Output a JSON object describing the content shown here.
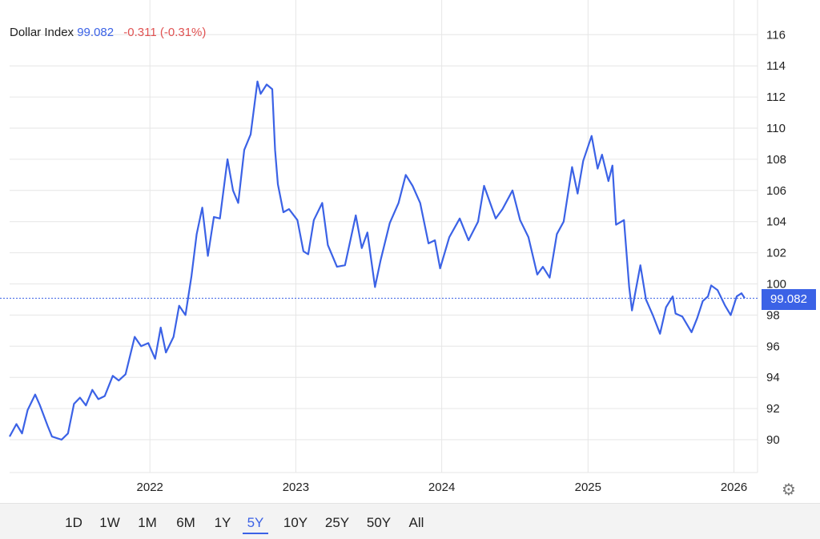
{
  "header": {
    "name": "Dollar Index",
    "value": "99.082",
    "change": "-0.311 (-0.31%)"
  },
  "price_tag": "99.082",
  "colors": {
    "line": "#3b62e6",
    "negative": "#e05252",
    "grid": "#e6e6e6"
  },
  "settings_icon": "gear-icon",
  "ranges": [
    {
      "label": "1D",
      "active": false
    },
    {
      "label": "1W",
      "active": false
    },
    {
      "label": "1M",
      "active": false
    },
    {
      "label": "6M",
      "active": false
    },
    {
      "label": "1Y",
      "active": false
    },
    {
      "label": "5Y",
      "active": true
    },
    {
      "label": "10Y",
      "active": false
    },
    {
      "label": "25Y",
      "active": false
    },
    {
      "label": "50Y",
      "active": false
    },
    {
      "label": "All",
      "active": false
    }
  ],
  "chart_data": {
    "type": "line",
    "title": "",
    "xlabel": "",
    "ylabel": "",
    "x_ticks": [
      "2022",
      "2023",
      "2024",
      "2025",
      "2026"
    ],
    "y_ticks": [
      90,
      92,
      94,
      96,
      98,
      100,
      102,
      104,
      106,
      108,
      110,
      112,
      114,
      116
    ],
    "ylim": [
      88,
      117
    ],
    "xlim": [
      "2021-01-15",
      "2026-01-28"
    ],
    "grid": true,
    "reference_line": 99.082,
    "series": [
      {
        "name": "",
        "points": [
          [
            "2021-01-15",
            90.2
          ],
          [
            "2021-02-01",
            91.0
          ],
          [
            "2021-02-15",
            90.4
          ],
          [
            "2021-03-01",
            91.9
          ],
          [
            "2021-03-20",
            92.9
          ],
          [
            "2021-04-01",
            92.2
          ],
          [
            "2021-04-20",
            90.9
          ],
          [
            "2021-05-01",
            90.2
          ],
          [
            "2021-05-25",
            90.0
          ],
          [
            "2021-06-10",
            90.4
          ],
          [
            "2021-06-25",
            92.3
          ],
          [
            "2021-07-10",
            92.7
          ],
          [
            "2021-07-25",
            92.2
          ],
          [
            "2021-08-10",
            93.2
          ],
          [
            "2021-08-25",
            92.6
          ],
          [
            "2021-09-10",
            92.8
          ],
          [
            "2021-09-30",
            94.1
          ],
          [
            "2021-10-15",
            93.8
          ],
          [
            "2021-11-01",
            94.2
          ],
          [
            "2021-11-24",
            96.6
          ],
          [
            "2021-12-10",
            96.0
          ],
          [
            "2021-12-28",
            96.2
          ],
          [
            "2022-01-14",
            95.2
          ],
          [
            "2022-01-28",
            97.2
          ],
          [
            "2022-02-10",
            95.6
          ],
          [
            "2022-03-01",
            96.6
          ],
          [
            "2022-03-15",
            98.6
          ],
          [
            "2022-03-31",
            98.0
          ],
          [
            "2022-04-15",
            100.5
          ],
          [
            "2022-04-28",
            103.2
          ],
          [
            "2022-05-12",
            104.9
          ],
          [
            "2022-05-26",
            101.8
          ],
          [
            "2022-06-10",
            104.3
          ],
          [
            "2022-06-25",
            104.2
          ],
          [
            "2022-07-14",
            108.0
          ],
          [
            "2022-07-28",
            106.0
          ],
          [
            "2022-08-10",
            105.2
          ],
          [
            "2022-08-25",
            108.6
          ],
          [
            "2022-09-10",
            109.6
          ],
          [
            "2022-09-27",
            113.0
          ],
          [
            "2022-10-05",
            112.2
          ],
          [
            "2022-10-20",
            112.8
          ],
          [
            "2022-11-03",
            112.5
          ],
          [
            "2022-11-10",
            108.6
          ],
          [
            "2022-11-17",
            106.4
          ],
          [
            "2022-12-01",
            104.6
          ],
          [
            "2022-12-15",
            104.8
          ],
          [
            "2023-01-05",
            104.1
          ],
          [
            "2023-01-20",
            102.1
          ],
          [
            "2023-02-01",
            101.9
          ],
          [
            "2023-02-15",
            104.1
          ],
          [
            "2023-03-08",
            105.2
          ],
          [
            "2023-03-22",
            102.5
          ],
          [
            "2023-04-14",
            101.1
          ],
          [
            "2023-05-04",
            101.2
          ],
          [
            "2023-05-31",
            104.4
          ],
          [
            "2023-06-15",
            102.3
          ],
          [
            "2023-06-29",
            103.3
          ],
          [
            "2023-07-18",
            99.8
          ],
          [
            "2023-08-01",
            101.5
          ],
          [
            "2023-08-24",
            103.9
          ],
          [
            "2023-09-15",
            105.2
          ],
          [
            "2023-10-03",
            107.0
          ],
          [
            "2023-10-20",
            106.3
          ],
          [
            "2023-11-08",
            105.2
          ],
          [
            "2023-11-29",
            102.6
          ],
          [
            "2023-12-15",
            102.8
          ],
          [
            "2023-12-28",
            101.0
          ],
          [
            "2024-01-20",
            103.0
          ],
          [
            "2024-02-15",
            104.2
          ],
          [
            "2024-03-08",
            102.8
          ],
          [
            "2024-04-01",
            104.0
          ],
          [
            "2024-04-16",
            106.3
          ],
          [
            "2024-05-15",
            104.2
          ],
          [
            "2024-06-01",
            104.8
          ],
          [
            "2024-06-26",
            106.0
          ],
          [
            "2024-07-15",
            104.1
          ],
          [
            "2024-08-05",
            103.0
          ],
          [
            "2024-08-27",
            100.6
          ],
          [
            "2024-09-10",
            101.1
          ],
          [
            "2024-09-27",
            100.4
          ],
          [
            "2024-10-15",
            103.2
          ],
          [
            "2024-11-01",
            104.0
          ],
          [
            "2024-11-22",
            107.5
          ],
          [
            "2024-12-06",
            105.8
          ],
          [
            "2024-12-20",
            107.9
          ],
          [
            "2025-01-10",
            109.5
          ],
          [
            "2025-01-25",
            107.4
          ],
          [
            "2025-02-05",
            108.3
          ],
          [
            "2025-02-21",
            106.6
          ],
          [
            "2025-03-03",
            107.6
          ],
          [
            "2025-03-12",
            103.8
          ],
          [
            "2025-04-01",
            104.1
          ],
          [
            "2025-04-14",
            99.8
          ],
          [
            "2025-04-21",
            98.3
          ],
          [
            "2025-05-12",
            101.2
          ],
          [
            "2025-05-26",
            99.0
          ],
          [
            "2025-06-12",
            98.0
          ],
          [
            "2025-06-30",
            96.8
          ],
          [
            "2025-07-15",
            98.5
          ],
          [
            "2025-08-01",
            99.2
          ],
          [
            "2025-08-08",
            98.1
          ],
          [
            "2025-08-25",
            97.9
          ],
          [
            "2025-09-17",
            96.9
          ],
          [
            "2025-10-01",
            97.8
          ],
          [
            "2025-10-15",
            98.9
          ],
          [
            "2025-10-28",
            99.2
          ],
          [
            "2025-11-05",
            99.9
          ],
          [
            "2025-11-21",
            99.6
          ],
          [
            "2025-12-10",
            98.6
          ],
          [
            "2025-12-24",
            98.0
          ],
          [
            "2026-01-08",
            99.2
          ],
          [
            "2026-01-20",
            99.4
          ],
          [
            "2026-01-28",
            99.08
          ]
        ]
      }
    ]
  }
}
